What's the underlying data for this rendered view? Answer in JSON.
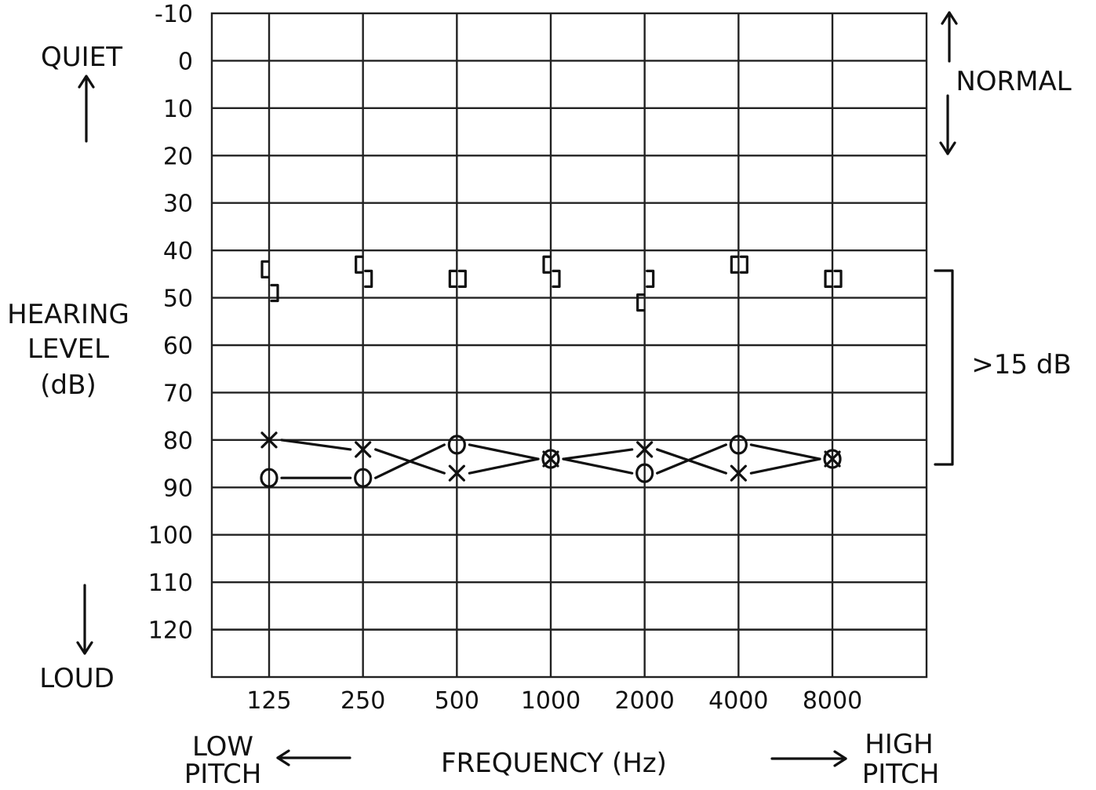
{
  "chart_data": {
    "type": "scatter",
    "title": "",
    "xlabel": "FREQUENCY (Hz)",
    "ylabel": "HEARING LEVEL (dB)",
    "x_categories": [
      "125",
      "250",
      "500",
      "1000",
      "2000",
      "4000",
      "8000"
    ],
    "y_ticks": [
      "-10",
      "0",
      "10",
      "20",
      "30",
      "40",
      "50",
      "60",
      "70",
      "80",
      "90",
      "100",
      "110",
      "120"
    ],
    "ylim": [
      -10,
      130
    ],
    "y_inverted": true,
    "grid": true,
    "series": [
      {
        "symbol": "X",
        "values": [
          80,
          82,
          87,
          84,
          82,
          87,
          84
        ]
      },
      {
        "symbol": "O",
        "values": [
          88,
          88,
          81,
          84,
          87,
          81,
          84
        ]
      },
      {
        "symbol": "[",
        "values": [
          44,
          43,
          46,
          43,
          51,
          43,
          46
        ]
      },
      {
        "symbol": "]",
        "values": [
          49,
          46,
          46,
          46,
          46,
          43,
          46
        ]
      }
    ],
    "annotations": {
      "quiet": "QUIET",
      "loud": "LOUD",
      "normal": "NORMAL",
      "gap": ">15 dB",
      "low_pitch": [
        "LOW",
        "PITCH"
      ],
      "high_pitch": [
        "HIGH",
        "PITCH"
      ],
      "ylabel_lines": [
        "HEARING",
        "LEVEL",
        "(dB)"
      ]
    }
  }
}
